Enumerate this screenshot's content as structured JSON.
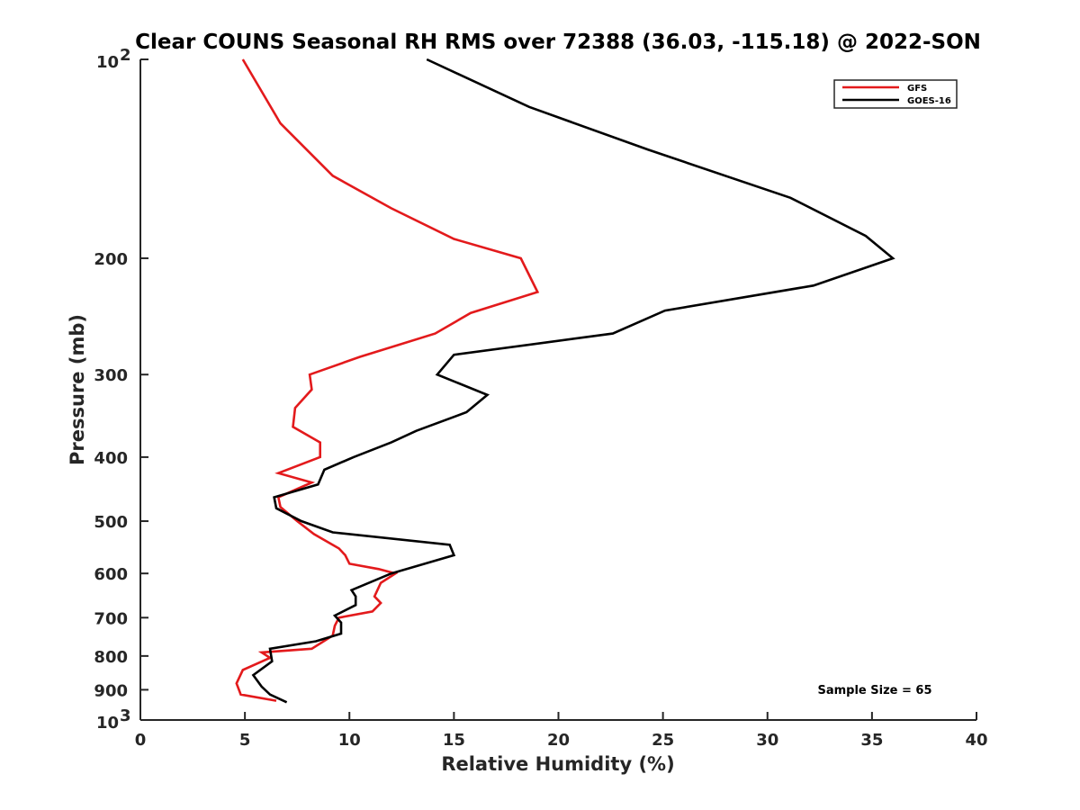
{
  "chart_data": {
    "type": "line",
    "title": "Clear COUNS Seasonal RH RMS over 72388 (36.03, -115.18) @ 2022-SON",
    "xlabel": "Relative Humidity (%)",
    "ylabel": "Pressure (mb)",
    "xlim": [
      0,
      40
    ],
    "ylim": [
      100,
      1000
    ],
    "yscale": "log",
    "yreversed": true,
    "x_ticks": [
      "0",
      "5",
      "10",
      "15",
      "20",
      "25",
      "30",
      "35",
      "40"
    ],
    "y_ticks": [
      {
        "value": 100,
        "base": "10",
        "exp": "2"
      },
      {
        "value": 200,
        "label": "200"
      },
      {
        "value": 300,
        "label": "300"
      },
      {
        "value": 400,
        "label": "400"
      },
      {
        "value": 500,
        "label": "500"
      },
      {
        "value": 600,
        "label": "600"
      },
      {
        "value": 700,
        "label": "700"
      },
      {
        "value": 800,
        "label": "800"
      },
      {
        "value": 900,
        "label": "900"
      },
      {
        "value": 1000,
        "base": "10",
        "exp": "3"
      }
    ],
    "legend_position": "top-right",
    "annotation": "Sample Size = 65",
    "series": [
      {
        "name": "GFS",
        "color": "#e31a1c",
        "points": [
          [
            4.9,
            100
          ],
          [
            6.7,
            125
          ],
          [
            9.2,
            150
          ],
          [
            12.0,
            168
          ],
          [
            15.0,
            187
          ],
          [
            18.2,
            200
          ],
          [
            19.0,
            225
          ],
          [
            15.8,
            242
          ],
          [
            14.1,
            260
          ],
          [
            10.5,
            282
          ],
          [
            8.1,
            300
          ],
          [
            8.2,
            316
          ],
          [
            7.4,
            337
          ],
          [
            7.3,
            360
          ],
          [
            8.6,
            380
          ],
          [
            8.6,
            400
          ],
          [
            6.6,
            423
          ],
          [
            8.2,
            437
          ],
          [
            6.6,
            460
          ],
          [
            6.7,
            476
          ],
          [
            7.5,
            500
          ],
          [
            8.3,
            523
          ],
          [
            9.5,
            550
          ],
          [
            9.8,
            563
          ],
          [
            10.0,
            580
          ],
          [
            11.4,
            591
          ],
          [
            12.2,
            600
          ],
          [
            11.5,
            620
          ],
          [
            11.2,
            650
          ],
          [
            11.5,
            665
          ],
          [
            11.1,
            685
          ],
          [
            9.5,
            700
          ],
          [
            9.3,
            720
          ],
          [
            9.2,
            745
          ],
          [
            8.2,
            780
          ],
          [
            5.8,
            790
          ],
          [
            6.2,
            805
          ],
          [
            4.9,
            840
          ],
          [
            4.6,
            880
          ],
          [
            4.8,
            915
          ],
          [
            6.5,
            935
          ]
        ]
      },
      {
        "name": "GOES-16",
        "color": "#000000",
        "points": [
          [
            13.7,
            100
          ],
          [
            18.6,
            118
          ],
          [
            24.3,
            137
          ],
          [
            31.1,
            162
          ],
          [
            34.7,
            185
          ],
          [
            36.0,
            200
          ],
          [
            32.2,
            220
          ],
          [
            25.1,
            240
          ],
          [
            22.6,
            260
          ],
          [
            15.0,
            280
          ],
          [
            14.2,
            300
          ],
          [
            16.6,
            322
          ],
          [
            15.6,
            342
          ],
          [
            13.2,
            365
          ],
          [
            12.0,
            380
          ],
          [
            10.2,
            400
          ],
          [
            8.8,
            418
          ],
          [
            8.5,
            440
          ],
          [
            6.4,
            460
          ],
          [
            6.5,
            478
          ],
          [
            7.7,
            500
          ],
          [
            9.2,
            520
          ],
          [
            14.8,
            543
          ],
          [
            15.0,
            563
          ],
          [
            12.0,
            600
          ],
          [
            10.1,
            636
          ],
          [
            10.3,
            650
          ],
          [
            10.3,
            670
          ],
          [
            9.3,
            695
          ],
          [
            9.6,
            712
          ],
          [
            9.6,
            740
          ],
          [
            8.4,
            760
          ],
          [
            6.2,
            780
          ],
          [
            6.3,
            815
          ],
          [
            5.4,
            855
          ],
          [
            5.8,
            890
          ],
          [
            6.2,
            915
          ],
          [
            7.0,
            940
          ]
        ]
      }
    ]
  }
}
